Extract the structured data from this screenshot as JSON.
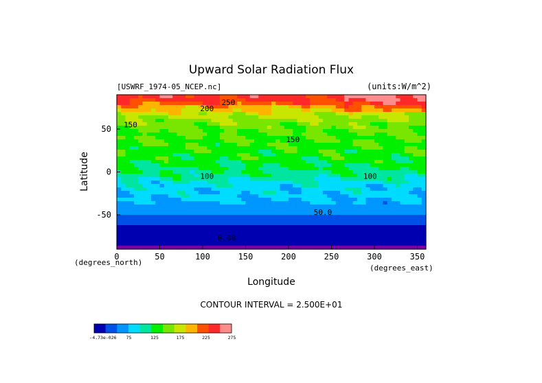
{
  "chart_data": {
    "type": "heatmap",
    "title": "Upward Solar Radiation Flux",
    "file_label": "[USWRF_1974-05_NCEP.nc]",
    "units_label": "(units:W/m^2)",
    "xlabel": "Longitude",
    "ylabel": "Latitude",
    "x_unit_label": "(degrees_east)",
    "y_unit_label": "(degrees_north)",
    "xlim": [
      0,
      360
    ],
    "ylim": [
      -90,
      90
    ],
    "x_ticks": [
      0,
      50,
      100,
      150,
      200,
      250,
      300,
      350
    ],
    "y_ticks": [
      -50,
      0,
      50
    ],
    "contour_interval_text": "CONTOUR INTERVAL = 2.500E+01",
    "contour_labels": [
      {
        "text": "250",
        "x": 130,
        "y": 78
      },
      {
        "text": "200",
        "x": 105,
        "y": 71
      },
      {
        "text": "150",
        "x": 16,
        "y": 52
      },
      {
        "text": "150",
        "x": 205,
        "y": 35
      },
      {
        "text": "100",
        "x": 105,
        "y": -8
      },
      {
        "text": "100",
        "x": 295,
        "y": -8
      },
      {
        "text": "50.0",
        "x": 240,
        "y": -50
      },
      {
        "text": "0.00",
        "x": 128,
        "y": -80
      }
    ],
    "colorbar": {
      "colors": [
        "#0000b0",
        "#0050e8",
        "#0096ff",
        "#00dcff",
        "#00e6a0",
        "#00f000",
        "#78e600",
        "#c8e600",
        "#ffb400",
        "#ff5000",
        "#ff2828",
        "#ff8c8c"
      ],
      "labels": [
        "-4.73e-026",
        "75",
        "125",
        "175",
        "225",
        "275"
      ]
    },
    "zonal_profile": [
      {
        "lat": 90,
        "value": 262
      },
      {
        "lat": 82,
        "value": 250
      },
      {
        "lat": 76,
        "value": 215
      },
      {
        "lat": 68,
        "value": 185
      },
      {
        "lat": 58,
        "value": 165
      },
      {
        "lat": 45,
        "value": 150
      },
      {
        "lat": 30,
        "value": 145
      },
      {
        "lat": 15,
        "value": 135
      },
      {
        "lat": 5,
        "value": 125
      },
      {
        "lat": -5,
        "value": 115
      },
      {
        "lat": -12,
        "value": 95
      },
      {
        "lat": -20,
        "value": 85
      },
      {
        "lat": -30,
        "value": 80
      },
      {
        "lat": -40,
        "value": 65
      },
      {
        "lat": -47,
        "value": 52
      },
      {
        "lat": -55,
        "value": 38
      },
      {
        "lat": -62,
        "value": 20
      },
      {
        "lat": -70,
        "value": 10
      },
      {
        "lat": -78,
        "value": 3
      },
      {
        "lat": -90,
        "value": 0
      }
    ]
  }
}
